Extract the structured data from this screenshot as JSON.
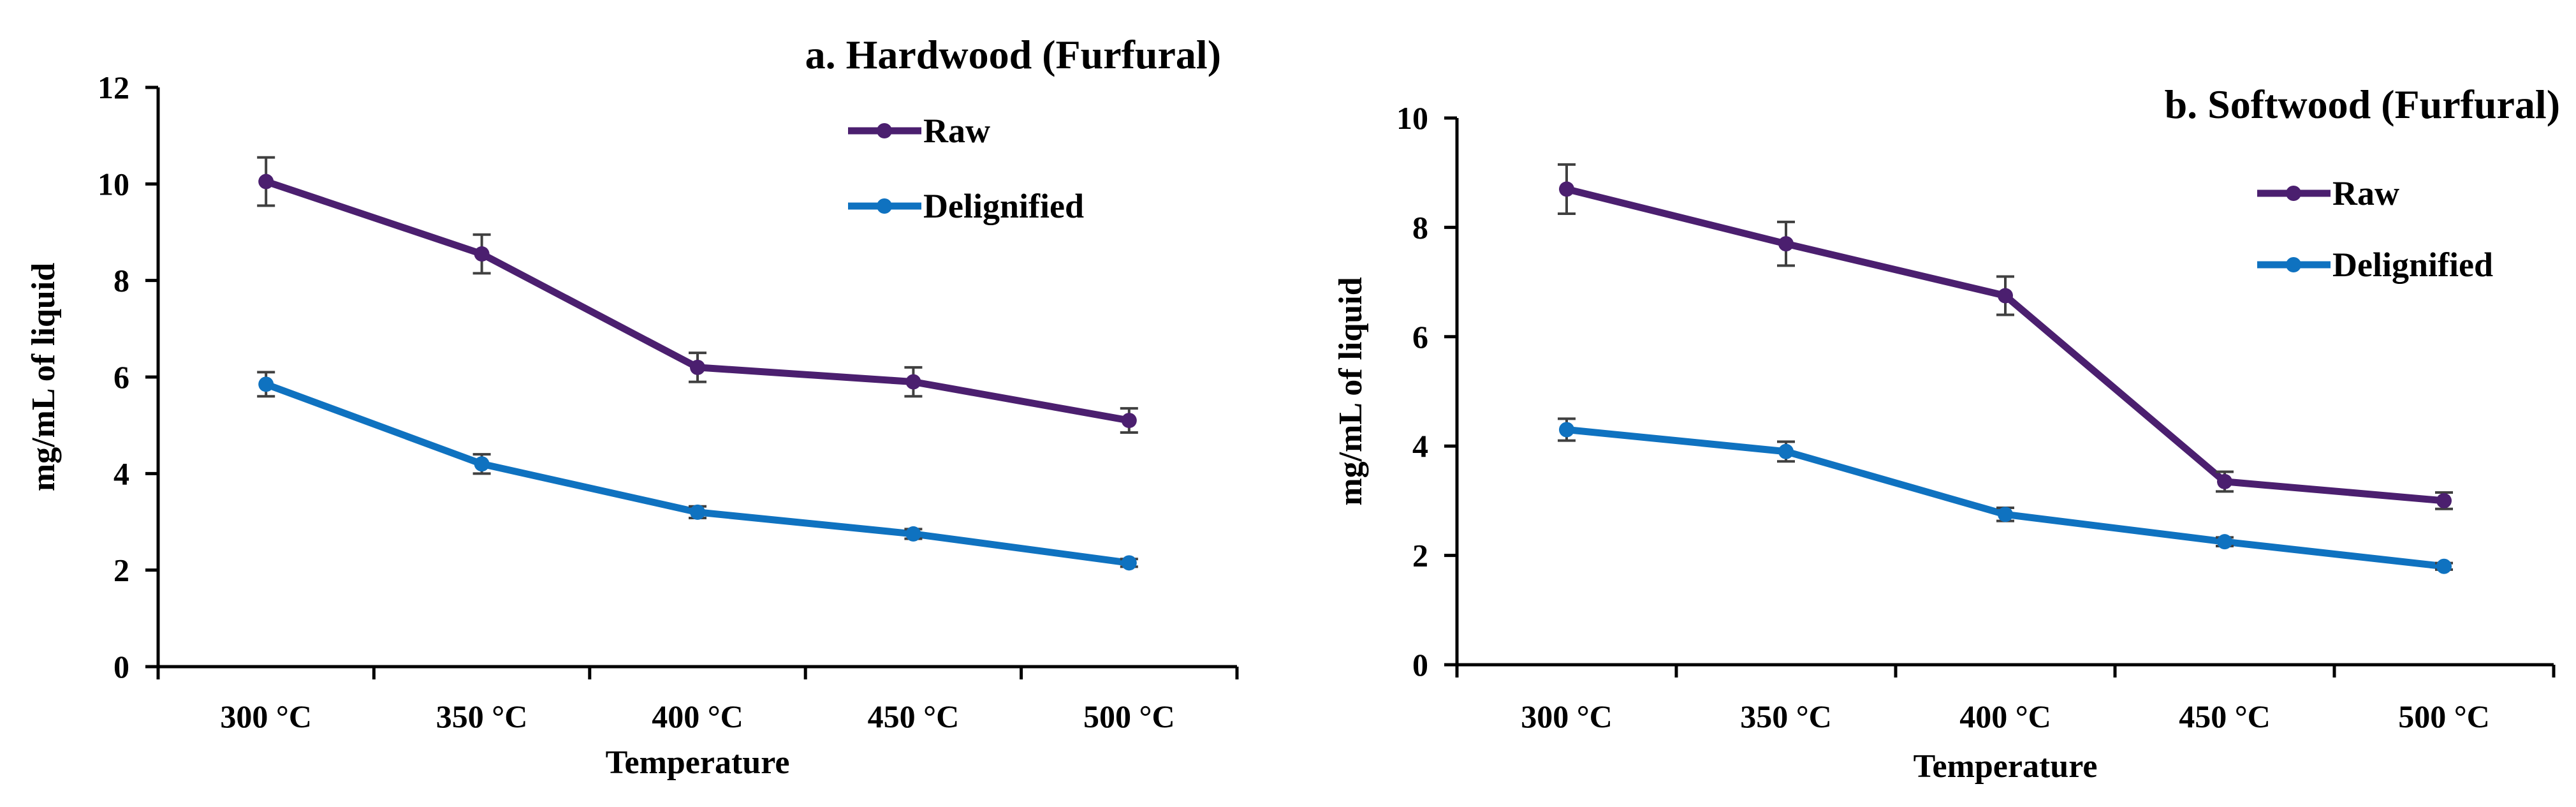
{
  "colors": {
    "raw": "#4b1f6f",
    "delignified": "#0f72c0",
    "axis": "#000000"
  },
  "chart_data": [
    {
      "type": "line",
      "title": "a. Hardwood (Furfural)",
      "xlabel": "Temperature",
      "ylabel": "mg/mL of liquid",
      "categories": [
        "300 °C",
        "350 °C",
        "400 °C",
        "450 °C",
        "500 °C"
      ],
      "ylim": [
        0,
        12
      ],
      "yticks": [
        0,
        2,
        4,
        6,
        8,
        10,
        12
      ],
      "legend": "top-right",
      "series": [
        {
          "name": "Raw",
          "color_key": "raw",
          "values": [
            10.05,
            8.55,
            6.2,
            5.9,
            5.1
          ],
          "errors": [
            0.5,
            0.4,
            0.3,
            0.3,
            0.25
          ]
        },
        {
          "name": "Delignified",
          "color_key": "delignified",
          "values": [
            5.85,
            4.2,
            3.2,
            2.75,
            2.15
          ],
          "errors": [
            0.25,
            0.2,
            0.12,
            0.1,
            0.08
          ]
        }
      ]
    },
    {
      "type": "line",
      "title": "b. Softwood (Furfural)",
      "xlabel": "Temperature",
      "ylabel": "mg/mL of liquid",
      "categories": [
        "300 °C",
        "350 °C",
        "400 °C",
        "450 °C",
        "500 °C"
      ],
      "ylim": [
        0,
        10
      ],
      "yticks": [
        0,
        2,
        4,
        6,
        8,
        10
      ],
      "legend": "top-right",
      "series": [
        {
          "name": "Raw",
          "color_key": "raw",
          "values": [
            8.7,
            7.7,
            6.75,
            3.35,
            3.0
          ],
          "errors": [
            0.45,
            0.4,
            0.35,
            0.18,
            0.15
          ]
        },
        {
          "name": "Delignified",
          "color_key": "delignified",
          "values": [
            4.3,
            3.9,
            2.75,
            2.25,
            1.8
          ],
          "errors": [
            0.2,
            0.18,
            0.12,
            0.08,
            0.06
          ]
        }
      ]
    }
  ]
}
